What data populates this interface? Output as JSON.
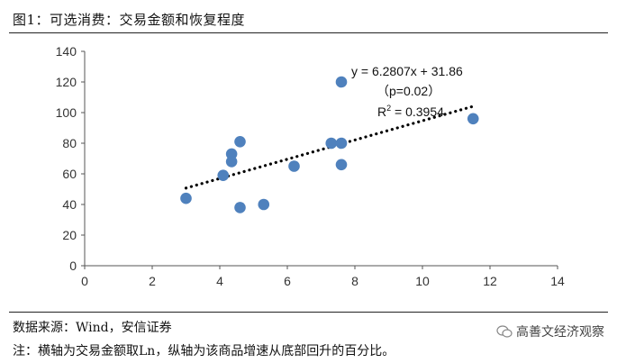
{
  "header": {
    "title": "图1：可选消费：交易金额和恢复程度"
  },
  "footer": {
    "source": "数据来源：Wind，安信证券",
    "note": "注：横轴为交易金额取Ln，纵轴为该商品增速从底部回升的百分比。",
    "watermark": "高善文经济观察",
    "watermark_icon": "wechat-icon"
  },
  "chart_data": {
    "type": "scatter",
    "x_ticks": [
      "0",
      "2",
      "4",
      "6",
      "8",
      "10",
      "12",
      "14"
    ],
    "y_ticks": [
      "0",
      "20",
      "40",
      "60",
      "80",
      "100",
      "120",
      "140"
    ],
    "xlim": [
      0,
      14
    ],
    "ylim": [
      0,
      140
    ],
    "grid": false,
    "marker_color": "#4f81bd",
    "trendline_color": "#000000",
    "points": [
      {
        "x": 3.0,
        "y": 44
      },
      {
        "x": 4.1,
        "y": 59
      },
      {
        "x": 4.35,
        "y": 73
      },
      {
        "x": 4.35,
        "y": 68
      },
      {
        "x": 4.6,
        "y": 81
      },
      {
        "x": 4.6,
        "y": 38
      },
      {
        "x": 5.3,
        "y": 40
      },
      {
        "x": 6.2,
        "y": 65
      },
      {
        "x": 7.3,
        "y": 80
      },
      {
        "x": 7.6,
        "y": 80
      },
      {
        "x": 7.6,
        "y": 66
      },
      {
        "x": 7.6,
        "y": 120
      },
      {
        "x": 11.5,
        "y": 96
      }
    ],
    "trendline": {
      "slope": 6.2807,
      "intercept": 31.86,
      "x_range": [
        3.0,
        11.5
      ],
      "style": "dotted",
      "equation": "y = 6.2807x + 31.86",
      "pvalue": "（p=0.02）",
      "r2_label": "R",
      "r2_sup": "2",
      "r2_value": " = 0.3954"
    }
  }
}
